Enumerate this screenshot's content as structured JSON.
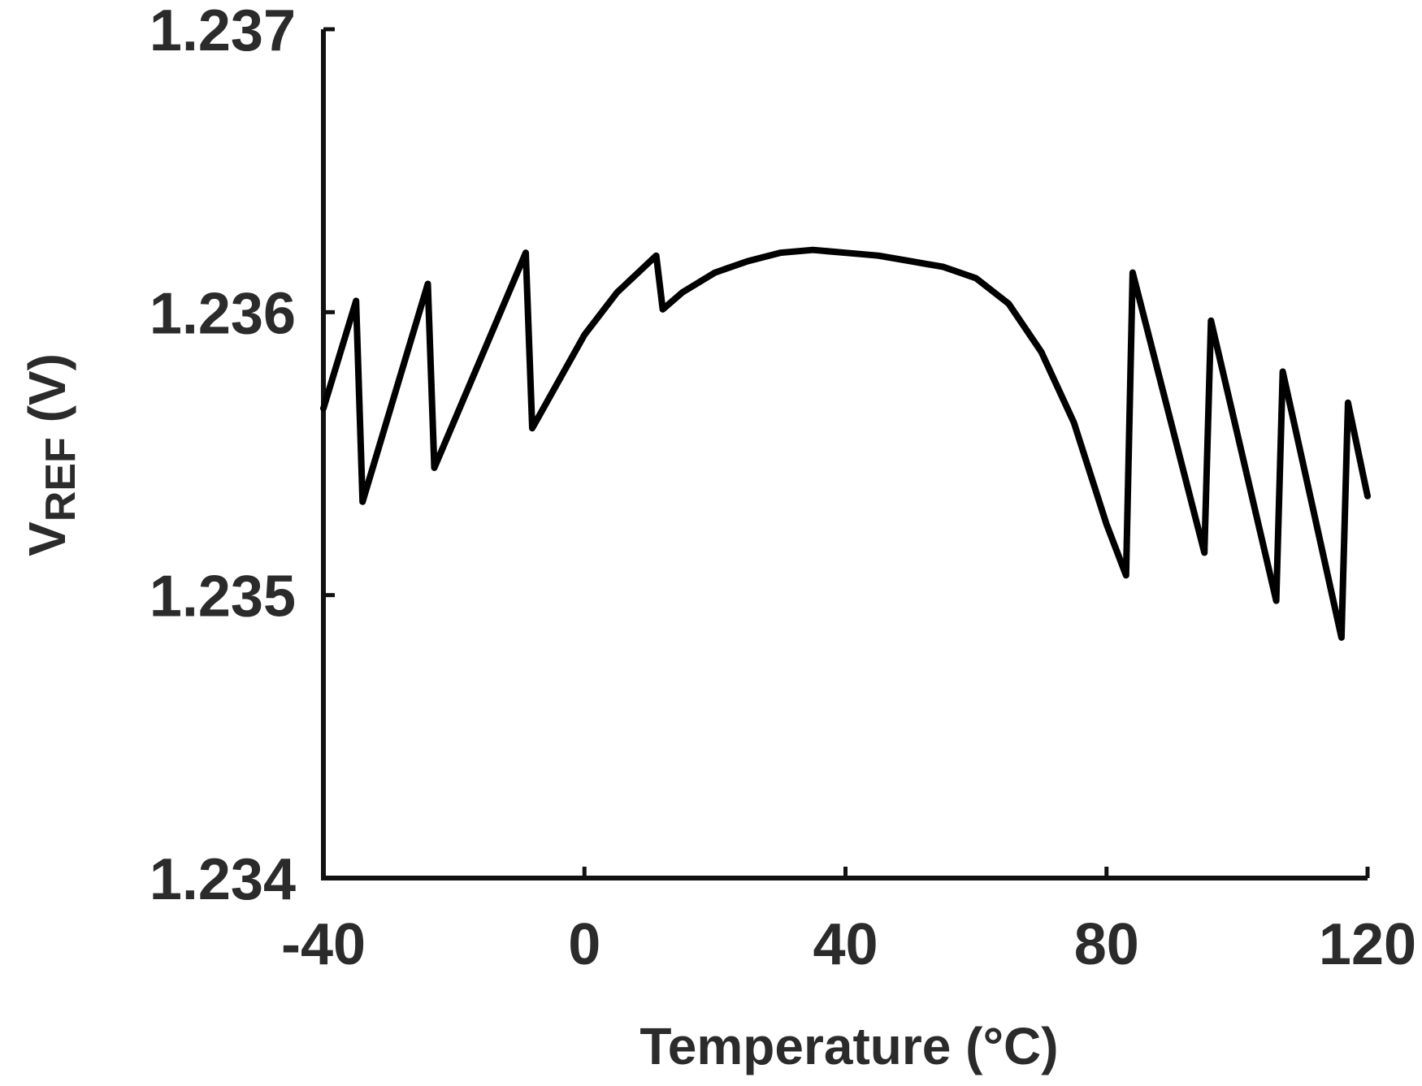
{
  "chart_data": {
    "type": "line",
    "xlabel": "Temperature (°C)",
    "ylabel_main": "V",
    "ylabel_sub": "REF",
    "ylabel_unit": " (V)",
    "xlim": [
      -40,
      120
    ],
    "ylim": [
      1.234,
      1.237
    ],
    "xticks": [
      -40,
      0,
      40,
      80,
      120
    ],
    "xtick_labels": [
      "-40",
      "0",
      "40",
      "80",
      "120"
    ],
    "yticks": [
      1.234,
      1.235,
      1.236,
      1.237
    ],
    "ytick_labels": [
      "1.234",
      "1.235",
      "1.236",
      "1.237"
    ],
    "grid": false,
    "color": "#000000",
    "series": [
      {
        "x": [
          -40,
          -35,
          -34,
          -24,
          -23,
          -9,
          -8,
          0,
          5,
          11,
          12,
          15,
          20,
          25,
          30,
          35,
          40,
          45,
          50,
          55,
          60,
          65,
          70,
          75,
          80,
          83,
          84,
          95,
          96,
          106,
          107,
          116,
          117,
          120
        ],
        "y": [
          1.23566,
          1.23604,
          1.23533,
          1.2361,
          1.23545,
          1.23621,
          1.23559,
          1.23592,
          1.23607,
          1.2362,
          1.23601,
          1.23607,
          1.23614,
          1.23618,
          1.23621,
          1.23622,
          1.23621,
          1.2362,
          1.23618,
          1.23616,
          1.23612,
          1.23603,
          1.23586,
          1.23561,
          1.23525,
          1.23507,
          1.23614,
          1.23515,
          1.23597,
          1.23498,
          1.23579,
          1.23485,
          1.23568,
          1.23535
        ]
      }
    ]
  }
}
